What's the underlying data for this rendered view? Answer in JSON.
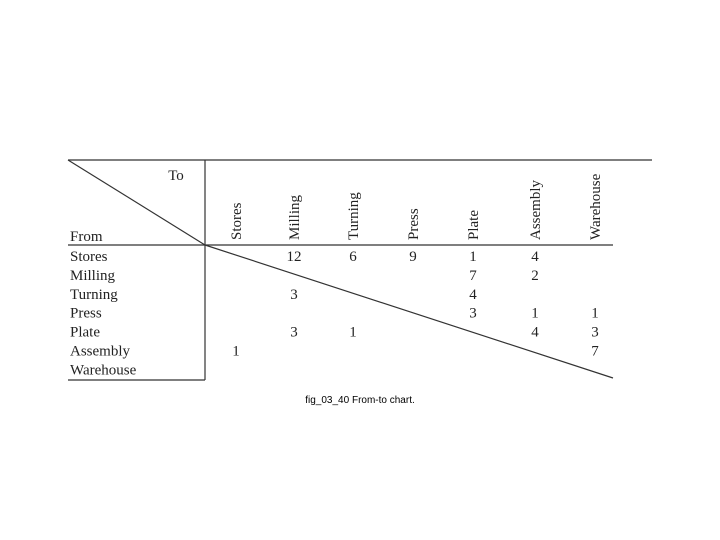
{
  "table": {
    "corner_to": "To",
    "corner_from": "From",
    "columns": [
      "Stores",
      "Milling",
      "Turning",
      "Press",
      "Plate",
      "Assembly",
      "Warehouse"
    ],
    "rows": [
      {
        "label": "Stores",
        "cells": [
          null,
          12,
          6,
          9,
          1,
          4,
          null
        ]
      },
      {
        "label": "Milling",
        "cells": [
          null,
          null,
          null,
          null,
          7,
          2,
          null
        ]
      },
      {
        "label": "Turning",
        "cells": [
          null,
          3,
          null,
          null,
          4,
          null,
          null
        ]
      },
      {
        "label": "Press",
        "cells": [
          null,
          null,
          null,
          null,
          3,
          1,
          1
        ]
      },
      {
        "label": "Plate",
        "cells": [
          null,
          3,
          1,
          null,
          null,
          4,
          3
        ]
      },
      {
        "label": "Assembly",
        "cells": [
          1,
          null,
          null,
          null,
          null,
          null,
          7
        ]
      },
      {
        "label": "Warehouse",
        "cells": [
          null,
          null,
          null,
          null,
          null,
          null,
          null
        ]
      }
    ]
  },
  "caption": "fig_03_40 From-to chart."
}
